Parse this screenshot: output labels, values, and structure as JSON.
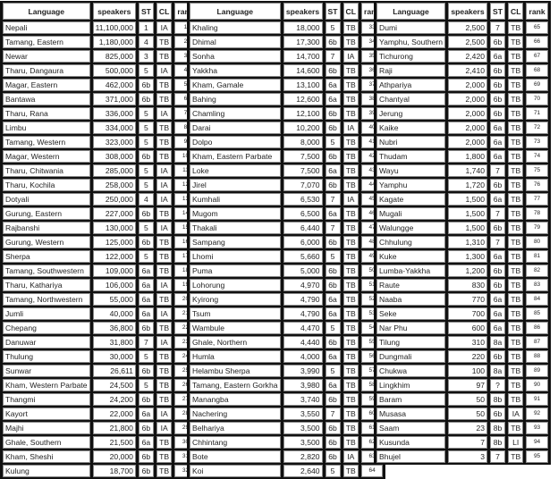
{
  "headers": {
    "language": "Language",
    "speakers": "speakers",
    "st": "ST",
    "cl": "CL",
    "rank": "rank"
  },
  "tables": [
    {
      "rows": [
        [
          "Nepali",
          "11,100,000",
          "1",
          "IA",
          "1"
        ],
        [
          "Tamang, Eastern",
          "1,180,000",
          "4",
          "TB",
          "2"
        ],
        [
          "Newar",
          "825,000",
          "3",
          "TB",
          "3"
        ],
        [
          "Tharu, Dangaura",
          "500,000",
          "5",
          "IA",
          "4"
        ],
        [
          "Magar, Eastern",
          "462,000",
          "6b",
          "TB",
          "5"
        ],
        [
          "Bantawa",
          "371,000",
          "6b",
          "TB",
          "6"
        ],
        [
          "Tharu, Rana",
          "336,000",
          "5",
          "IA",
          "7"
        ],
        [
          "Limbu",
          "334,000",
          "5",
          "TB",
          "8"
        ],
        [
          "Tamang, Western",
          "323,000",
          "5",
          "TB",
          "9"
        ],
        [
          "Magar, Western",
          "308,000",
          "6b",
          "TB",
          "10"
        ],
        [
          "Tharu, Chitwania",
          "285,000",
          "5",
          "IA",
          "11"
        ],
        [
          "Tharu, Kochila",
          "258,000",
          "5",
          "IA",
          "12"
        ],
        [
          "Dotyali",
          "250,000",
          "4",
          "IA",
          "13"
        ],
        [
          "Gurung, Eastern",
          "227,000",
          "6b",
          "TB",
          "14"
        ],
        [
          "Rajbanshi",
          "130,000",
          "5",
          "IA",
          "15"
        ],
        [
          "Gurung, Western",
          "125,000",
          "6b",
          "TB",
          "16"
        ],
        [
          "Sherpa",
          "122,000",
          "5",
          "TB",
          "17"
        ],
        [
          "Tamang, Southwestern",
          "109,000",
          "6a",
          "TB",
          "18"
        ],
        [
          "Tharu, Kathariya",
          "106,000",
          "6a",
          "IA",
          "19"
        ],
        [
          "Tamang, Northwestern",
          "55,000",
          "6a",
          "TB",
          "20"
        ],
        [
          "Jumli",
          "40,000",
          "6a",
          "IA",
          "21"
        ],
        [
          "Chepang",
          "36,800",
          "6b",
          "TB",
          "22"
        ],
        [
          "Danuwar",
          "31,800",
          "7",
          "IA",
          "23"
        ],
        [
          "Thulung",
          "30,000",
          "5",
          "TB",
          "24"
        ],
        [
          "Sunwar",
          "26,611",
          "6b",
          "TB",
          "25"
        ],
        [
          "Kham, Western Parbate",
          "24,500",
          "5",
          "TB",
          "26"
        ],
        [
          "Thangmi",
          "24,200",
          "6b",
          "TB",
          "27"
        ],
        [
          "Kayort",
          "22,000",
          "6a",
          "IA",
          "28"
        ],
        [
          "Majhi",
          "21,800",
          "6b",
          "IA",
          "29"
        ],
        [
          "Ghale, Southern",
          "21,500",
          "6a",
          "TB",
          "30"
        ],
        [
          "Kham, Sheshi",
          "20,000",
          "6b",
          "TB",
          "31"
        ],
        [
          "Kulung",
          "18,700",
          "6b",
          "TB",
          "32"
        ]
      ]
    },
    {
      "rows": [
        [
          "Khaling",
          "18,000",
          "5",
          "TB",
          "33"
        ],
        [
          "Dhimal",
          "17,300",
          "6b",
          "TB",
          "34"
        ],
        [
          "Sonha",
          "14,700",
          "7",
          "IA",
          "35"
        ],
        [
          "Yakkha",
          "14,600",
          "6b",
          "TB",
          "36"
        ],
        [
          "Kham, Gamale",
          "13,100",
          "6a",
          "TB",
          "37"
        ],
        [
          "Bahing",
          "12,600",
          "6a",
          "TB",
          "38"
        ],
        [
          "Chamling",
          "12,100",
          "6b",
          "TB",
          "39"
        ],
        [
          "Darai",
          "10,200",
          "6b",
          "IA",
          "40"
        ],
        [
          "Dolpo",
          "8,000",
          "5",
          "TB",
          "41"
        ],
        [
          "Kham, Eastern Parbate",
          "7,500",
          "6b",
          "TB",
          "42"
        ],
        [
          "Loke",
          "7,500",
          "6a",
          "TB",
          "43"
        ],
        [
          "Jirel",
          "7,070",
          "6b",
          "TB",
          "44"
        ],
        [
          "Kumhali",
          "6,530",
          "7",
          "IA",
          "45"
        ],
        [
          "Mugom",
          "6,500",
          "6a",
          "TB",
          "46"
        ],
        [
          "Thakali",
          "6,440",
          "7",
          "TB",
          "47"
        ],
        [
          "Sampang",
          "6,000",
          "6b",
          "TB",
          "48"
        ],
        [
          "Lhomi",
          "5,660",
          "5",
          "TB",
          "49"
        ],
        [
          "Puma",
          "5,000",
          "6b",
          "TB",
          "50"
        ],
        [
          "Lohorung",
          "4,970",
          "6b",
          "TB",
          "51"
        ],
        [
          "Kyirong",
          "4,790",
          "6a",
          "TB",
          "52"
        ],
        [
          "Tsum",
          "4,790",
          "6a",
          "TB",
          "53"
        ],
        [
          "Wambule",
          "4,470",
          "5",
          "TB",
          "54"
        ],
        [
          "Ghale, Northern",
          "4,440",
          "6b",
          "TB",
          "55"
        ],
        [
          "Humla",
          "4,000",
          "6a",
          "TB",
          "56"
        ],
        [
          "Helambu Sherpa",
          "3,990",
          "5",
          "TB",
          "57"
        ],
        [
          "Tamang, Eastern Gorkha",
          "3,980",
          "6a",
          "TB",
          "58"
        ],
        [
          "Manangba",
          "3,740",
          "6b",
          "TB",
          "59"
        ],
        [
          "Nachering",
          "3,550",
          "7",
          "TB",
          "60"
        ],
        [
          "Belhariya",
          "3,500",
          "6b",
          "TB",
          "61"
        ],
        [
          "Chhintang",
          "3,500",
          "6b",
          "TB",
          "62"
        ],
        [
          "Bote",
          "2,820",
          "6b",
          "IA",
          "63"
        ],
        [
          "Koi",
          "2,640",
          "5",
          "TB",
          "64"
        ]
      ]
    },
    {
      "rows": [
        [
          "Dumi",
          "2,500",
          "7",
          "TB",
          "65"
        ],
        [
          "Yamphu, Southern",
          "2,500",
          "6b",
          "TB",
          "66"
        ],
        [
          "Tichurong",
          "2,420",
          "6a",
          "TB",
          "67"
        ],
        [
          "Raji",
          "2,410",
          "6b",
          "TB",
          "68"
        ],
        [
          "Athpariya",
          "2,000",
          "6b",
          "TB",
          "69"
        ],
        [
          "Chantyal",
          "2,000",
          "6b",
          "TB",
          "70"
        ],
        [
          "Jerung",
          "2,000",
          "6b",
          "TB",
          "71"
        ],
        [
          "Kaike",
          "2,000",
          "6a",
          "TB",
          "72"
        ],
        [
          "Nubri",
          "2,000",
          "6a",
          "TB",
          "73"
        ],
        [
          "Thudam",
          "1,800",
          "6a",
          "TB",
          "74"
        ],
        [
          "Wayu",
          "1,740",
          "7",
          "TB",
          "75"
        ],
        [
          "Yamphu",
          "1,720",
          "6b",
          "TB",
          "76"
        ],
        [
          "Kagate",
          "1,500",
          "6a",
          "TB",
          "77"
        ],
        [
          "Mugali",
          "1,500",
          "7",
          "TB",
          "78"
        ],
        [
          "Walungge",
          "1,500",
          "6b",
          "TB",
          "79"
        ],
        [
          "Chhulung",
          "1,310",
          "7",
          "TB",
          "80"
        ],
        [
          "Kuke",
          "1,300",
          "6a",
          "TB",
          "81"
        ],
        [
          "Lumba-Yakkha",
          "1,200",
          "6b",
          "TB",
          "82"
        ],
        [
          "Raute",
          "830",
          "6b",
          "TB",
          "83"
        ],
        [
          "Naaba",
          "770",
          "6a",
          "TB",
          "84"
        ],
        [
          "Seke",
          "700",
          "6a",
          "TB",
          "85"
        ],
        [
          "Nar Phu",
          "600",
          "6a",
          "TB",
          "86"
        ],
        [
          "Tilung",
          "310",
          "8a",
          "TB",
          "87"
        ],
        [
          "Dungmali",
          "220",
          "6b",
          "TB",
          "88"
        ],
        [
          "Chukwa",
          "100",
          "8a",
          "TB",
          "89"
        ],
        [
          "Lingkhim",
          "97",
          "?",
          "TB",
          "90"
        ],
        [
          "Baram",
          "50",
          "8b",
          "TB",
          "91"
        ],
        [
          "Musasa",
          "50",
          "6b",
          "IA",
          "92"
        ],
        [
          "Saam",
          "23",
          "8b",
          "TB",
          "93"
        ],
        [
          "Kusunda",
          "7",
          "8b",
          "LI",
          "94"
        ],
        [
          "Bhujel",
          "3",
          "7",
          "TB",
          "95"
        ]
      ]
    }
  ]
}
